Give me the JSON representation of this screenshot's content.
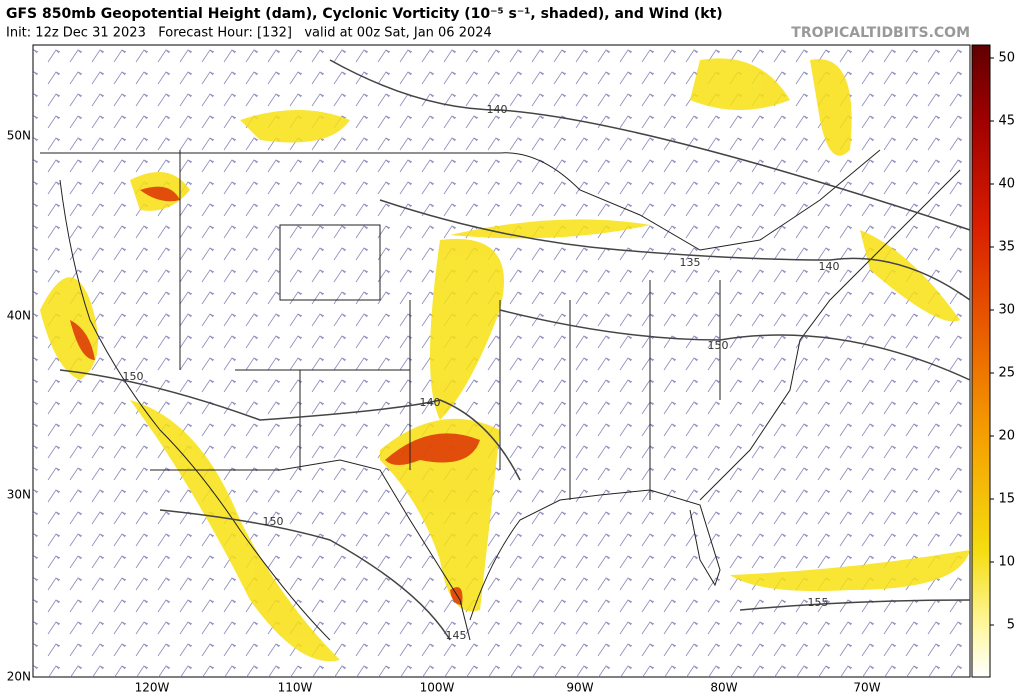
{
  "header": {
    "title": "GFS 850mb Geopotential Height (dam), Cyclonic Vorticity (10⁻⁵ s⁻¹, shaded), and Wind (kt)",
    "subtitle": "Init: 12z Dec 31 2023   Forecast Hour: [132]   valid at 00z Sat, Jan 06 2024",
    "source": "TROPICALTIDBITS.COM"
  },
  "map": {
    "lat_labels": [
      "50N",
      "40N",
      "30N",
      "20N"
    ],
    "lon_labels": [
      "120W",
      "110W",
      "100W",
      "90W",
      "80W",
      "70W"
    ],
    "contour_labels": [
      "140",
      "135",
      "140",
      "150",
      "150",
      "140",
      "150",
      "145",
      "155"
    ]
  },
  "colorbar": {
    "ticks": [
      5,
      10,
      15,
      20,
      25,
      30,
      35,
      40,
      45,
      50
    ]
  }
}
